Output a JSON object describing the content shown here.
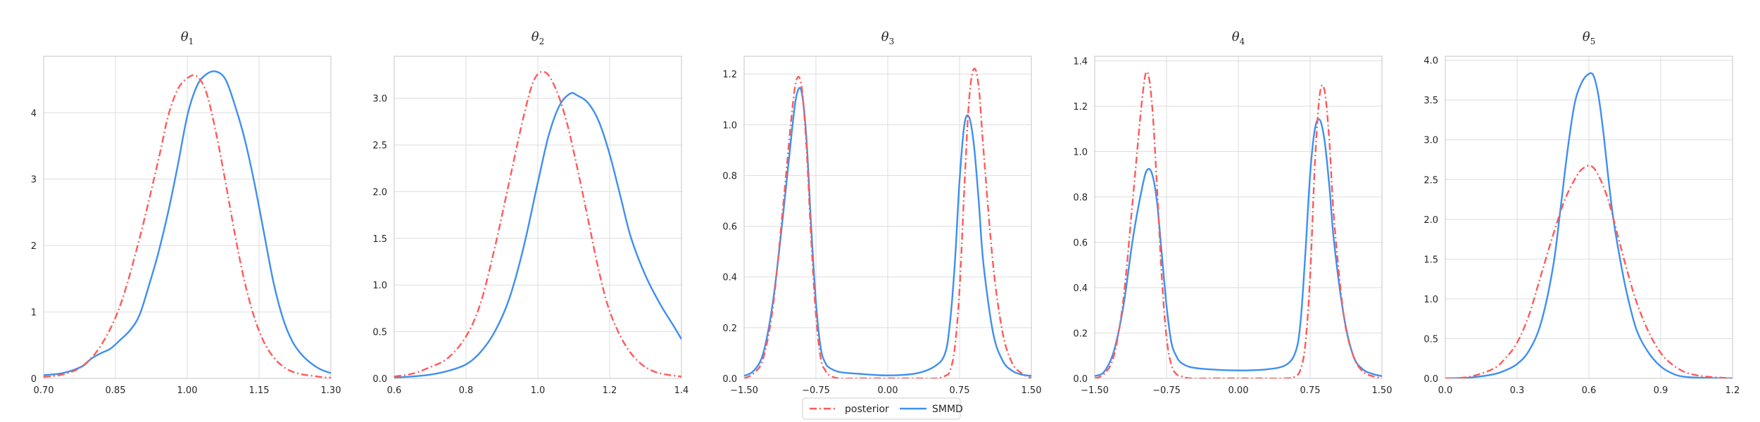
{
  "figure": {
    "colors": {
      "posterior": "#ff5a5a",
      "smmd": "#3f8fef",
      "grid": "#dedede",
      "frame": "#cfcfcf"
    },
    "legend": {
      "placement": "bottom-center",
      "entries": [
        "posterior",
        "SMMD"
      ]
    }
  },
  "chart_data": [
    {
      "type": "line",
      "title": "θ1",
      "title_parts": {
        "base": "θ",
        "sub": "1"
      },
      "xlim": [
        0.7,
        1.3
      ],
      "ylim": [
        0,
        4.85
      ],
      "xticks": [
        0.7,
        0.85,
        1.0,
        1.15,
        1.3
      ],
      "xtick_labels": [
        "0.70",
        "0.85",
        "1.00",
        "1.15",
        "1.30"
      ],
      "yticks": [
        0,
        1,
        2,
        3,
        4
      ],
      "ytick_labels": [
        "0",
        "1",
        "2",
        "3",
        "4"
      ],
      "grid": true,
      "series": [
        {
          "name": "posterior",
          "style": "dashdot",
          "x": [
            0.7,
            0.74,
            0.78,
            0.82,
            0.86,
            0.9,
            0.94,
            0.96,
            0.98,
            1.0,
            1.02,
            1.04,
            1.06,
            1.08,
            1.1,
            1.12,
            1.14,
            1.16,
            1.18,
            1.2,
            1.22,
            1.24,
            1.26,
            1.28,
            1.3
          ],
          "y": [
            0.02,
            0.06,
            0.18,
            0.5,
            1.1,
            2.1,
            3.3,
            3.95,
            4.35,
            4.52,
            4.55,
            4.3,
            3.7,
            2.95,
            2.15,
            1.45,
            0.92,
            0.55,
            0.32,
            0.18,
            0.1,
            0.06,
            0.04,
            0.02,
            0.01
          ]
        },
        {
          "name": "SMMD",
          "style": "solid",
          "x": [
            0.7,
            0.74,
            0.78,
            0.8,
            0.82,
            0.84,
            0.86,
            0.88,
            0.9,
            0.92,
            0.94,
            0.96,
            0.98,
            1.0,
            1.02,
            1.04,
            1.06,
            1.08,
            1.1,
            1.12,
            1.14,
            1.16,
            1.18,
            1.2,
            1.22,
            1.24,
            1.26,
            1.28,
            1.3
          ],
          "y": [
            0.05,
            0.08,
            0.18,
            0.3,
            0.38,
            0.45,
            0.58,
            0.72,
            0.95,
            1.4,
            1.9,
            2.5,
            3.2,
            3.95,
            4.4,
            4.58,
            4.62,
            4.5,
            4.1,
            3.6,
            2.95,
            2.2,
            1.45,
            0.9,
            0.55,
            0.35,
            0.22,
            0.13,
            0.08
          ]
        }
      ]
    },
    {
      "type": "line",
      "title": "θ2",
      "title_parts": {
        "base": "θ",
        "sub": "2"
      },
      "xlim": [
        0.6,
        1.4
      ],
      "ylim": [
        0,
        3.45
      ],
      "xticks": [
        0.6,
        0.8,
        1.0,
        1.2,
        1.4
      ],
      "xtick_labels": [
        "0.6",
        "0.8",
        "1.0",
        "1.2",
        "1.4"
      ],
      "yticks": [
        0,
        0.5,
        1.0,
        1.5,
        2.0,
        2.5,
        3.0
      ],
      "ytick_labels": [
        "0.0",
        "0.5",
        "1.0",
        "1.5",
        "2.0",
        "2.5",
        "3.0"
      ],
      "grid": true,
      "series": [
        {
          "name": "posterior",
          "style": "dashdot",
          "x": [
            0.6,
            0.65,
            0.7,
            0.75,
            0.8,
            0.84,
            0.88,
            0.92,
            0.96,
            0.99,
            1.02,
            1.05,
            1.08,
            1.11,
            1.14,
            1.17,
            1.2,
            1.24,
            1.28,
            1.32,
            1.36,
            1.4
          ],
          "y": [
            0.02,
            0.05,
            0.12,
            0.22,
            0.45,
            0.8,
            1.4,
            2.1,
            2.8,
            3.2,
            3.28,
            3.1,
            2.75,
            2.25,
            1.7,
            1.15,
            0.72,
            0.38,
            0.18,
            0.08,
            0.04,
            0.02
          ]
        },
        {
          "name": "SMMD",
          "style": "solid",
          "x": [
            0.6,
            0.65,
            0.7,
            0.75,
            0.8,
            0.84,
            0.88,
            0.92,
            0.96,
            1.0,
            1.03,
            1.06,
            1.09,
            1.11,
            1.14,
            1.17,
            1.2,
            1.23,
            1.26,
            1.3,
            1.34,
            1.38,
            1.4
          ],
          "y": [
            0.01,
            0.02,
            0.04,
            0.08,
            0.15,
            0.28,
            0.5,
            0.85,
            1.4,
            2.1,
            2.6,
            2.92,
            3.05,
            3.03,
            2.95,
            2.75,
            2.4,
            1.95,
            1.5,
            1.1,
            0.8,
            0.55,
            0.42
          ]
        }
      ]
    },
    {
      "type": "line",
      "title": "θ3",
      "title_parts": {
        "base": "θ",
        "sub": "3"
      },
      "xlim": [
        -1.5,
        1.5
      ],
      "ylim": [
        0,
        1.27
      ],
      "xticks": [
        -1.5,
        -0.75,
        0.0,
        0.75,
        1.5
      ],
      "xtick_labels": [
        "−1.50",
        "−0.75",
        "0.00",
        "0.75",
        "1.50"
      ],
      "yticks": [
        0,
        0.2,
        0.4,
        0.6,
        0.8,
        1.0,
        1.2
      ],
      "ytick_labels": [
        "0.0",
        "0.2",
        "0.4",
        "0.6",
        "0.8",
        "1.0",
        "1.2"
      ],
      "grid": true,
      "series": [
        {
          "name": "posterior",
          "style": "dashdot",
          "x": [
            -1.5,
            -1.4,
            -1.3,
            -1.2,
            -1.1,
            -1.0,
            -0.95,
            -0.9,
            -0.85,
            -0.8,
            -0.75,
            -0.7,
            -0.65,
            -0.6,
            -0.5,
            -0.3,
            0.0,
            0.3,
            0.5,
            0.6,
            0.65,
            0.7,
            0.75,
            0.8,
            0.85,
            0.9,
            0.95,
            1.0,
            1.1,
            1.2,
            1.3,
            1.4,
            1.5
          ],
          "y": [
            0.0,
            0.02,
            0.08,
            0.28,
            0.65,
            1.05,
            1.18,
            1.15,
            0.92,
            0.55,
            0.25,
            0.08,
            0.03,
            0.01,
            0.0,
            0.0,
            0.0,
            0.0,
            0.0,
            0.01,
            0.03,
            0.12,
            0.35,
            0.75,
            1.1,
            1.22,
            1.15,
            0.9,
            0.45,
            0.18,
            0.06,
            0.02,
            0.0
          ]
        },
        {
          "name": "SMMD",
          "style": "solid",
          "x": [
            -1.5,
            -1.4,
            -1.3,
            -1.2,
            -1.1,
            -1.0,
            -0.95,
            -0.9,
            -0.85,
            -0.8,
            -0.75,
            -0.7,
            -0.65,
            -0.6,
            -0.5,
            -0.3,
            0.0,
            0.3,
            0.5,
            0.6,
            0.65,
            0.7,
            0.75,
            0.8,
            0.85,
            0.9,
            0.95,
            1.0,
            1.1,
            1.2,
            1.3,
            1.4,
            1.5
          ],
          "y": [
            0.01,
            0.03,
            0.1,
            0.3,
            0.62,
            0.98,
            1.12,
            1.13,
            0.95,
            0.6,
            0.3,
            0.12,
            0.06,
            0.04,
            0.025,
            0.018,
            0.012,
            0.02,
            0.05,
            0.1,
            0.22,
            0.45,
            0.78,
            1.0,
            1.03,
            0.92,
            0.7,
            0.45,
            0.18,
            0.07,
            0.03,
            0.015,
            0.01
          ]
        }
      ]
    },
    {
      "type": "line",
      "title": "θ4",
      "title_parts": {
        "base": "θ",
        "sub": "4"
      },
      "xlim": [
        -1.5,
        1.5
      ],
      "ylim": [
        0,
        1.42
      ],
      "xticks": [
        -1.5,
        -0.75,
        0.0,
        0.75,
        1.5
      ],
      "xtick_labels": [
        "−1.50",
        "−0.75",
        "0.00",
        "0.75",
        "1.50"
      ],
      "yticks": [
        0,
        0.2,
        0.4,
        0.6,
        0.8,
        1.0,
        1.2,
        1.4
      ],
      "ytick_labels": [
        "0.0",
        "0.2",
        "0.4",
        "0.6",
        "0.8",
        "1.0",
        "1.2",
        "1.4"
      ],
      "grid": true,
      "series": [
        {
          "name": "posterior",
          "style": "dashdot",
          "x": [
            -1.5,
            -1.4,
            -1.3,
            -1.2,
            -1.1,
            -1.0,
            -0.95,
            -0.9,
            -0.85,
            -0.8,
            -0.75,
            -0.7,
            -0.65,
            -0.6,
            -0.5,
            -0.3,
            0.0,
            0.3,
            0.5,
            0.6,
            0.65,
            0.7,
            0.75,
            0.8,
            0.85,
            0.9,
            0.95,
            1.0,
            1.1,
            1.2,
            1.3,
            1.4,
            1.5
          ],
          "y": [
            0.0,
            0.02,
            0.1,
            0.35,
            0.8,
            1.25,
            1.35,
            1.2,
            0.85,
            0.45,
            0.18,
            0.06,
            0.02,
            0.01,
            0.0,
            0.0,
            0.0,
            0.0,
            0.0,
            0.01,
            0.04,
            0.15,
            0.45,
            0.95,
            1.25,
            1.27,
            1.05,
            0.7,
            0.28,
            0.1,
            0.03,
            0.01,
            0.0
          ]
        },
        {
          "name": "SMMD",
          "style": "solid",
          "x": [
            -1.5,
            -1.4,
            -1.3,
            -1.2,
            -1.1,
            -1.0,
            -0.95,
            -0.9,
            -0.85,
            -0.8,
            -0.75,
            -0.7,
            -0.65,
            -0.6,
            -0.5,
            -0.3,
            0.0,
            0.3,
            0.5,
            0.6,
            0.65,
            0.7,
            0.75,
            0.8,
            0.85,
            0.9,
            0.95,
            1.0,
            1.1,
            1.2,
            1.3,
            1.4,
            1.5
          ],
          "y": [
            0.01,
            0.03,
            0.12,
            0.32,
            0.62,
            0.85,
            0.92,
            0.9,
            0.78,
            0.55,
            0.32,
            0.16,
            0.1,
            0.07,
            0.05,
            0.04,
            0.035,
            0.04,
            0.06,
            0.12,
            0.25,
            0.55,
            0.9,
            1.1,
            1.14,
            1.05,
            0.85,
            0.6,
            0.28,
            0.1,
            0.04,
            0.02,
            0.01
          ]
        }
      ]
    },
    {
      "type": "line",
      "title": "θ5",
      "title_parts": {
        "base": "θ",
        "sub": "5"
      },
      "xlim": [
        0.0,
        1.2
      ],
      "ylim": [
        0,
        4.05
      ],
      "xticks": [
        0.0,
        0.3,
        0.6,
        0.9,
        1.2
      ],
      "xtick_labels": [
        "0.0",
        "0.3",
        "0.6",
        "0.9",
        "1.2"
      ],
      "yticks": [
        0,
        0.5,
        1.0,
        1.5,
        2.0,
        2.5,
        3.0,
        3.5,
        4.0
      ],
      "ytick_labels": [
        "0.0",
        "0.5",
        "1.0",
        "1.5",
        "2.0",
        "2.5",
        "3.0",
        "3.5",
        "4.0"
      ],
      "grid": true,
      "series": [
        {
          "name": "posterior",
          "style": "dashdot",
          "x": [
            0.0,
            0.1,
            0.2,
            0.25,
            0.3,
            0.35,
            0.4,
            0.45,
            0.5,
            0.55,
            0.58,
            0.61,
            0.64,
            0.68,
            0.72,
            0.76,
            0.8,
            0.85,
            0.9,
            0.95,
            1.0,
            1.05,
            1.1,
            1.2
          ],
          "y": [
            0.0,
            0.02,
            0.12,
            0.25,
            0.45,
            0.8,
            1.3,
            1.8,
            2.25,
            2.55,
            2.65,
            2.67,
            2.55,
            2.25,
            1.8,
            1.35,
            0.95,
            0.58,
            0.32,
            0.17,
            0.08,
            0.04,
            0.02,
            0.0
          ]
        },
        {
          "name": "SMMD",
          "style": "solid",
          "x": [
            0.0,
            0.1,
            0.2,
            0.25,
            0.3,
            0.35,
            0.4,
            0.45,
            0.48,
            0.51,
            0.54,
            0.57,
            0.6,
            0.62,
            0.64,
            0.66,
            0.68,
            0.7,
            0.73,
            0.76,
            0.8,
            0.85,
            0.9,
            0.95,
            1.0,
            1.1,
            1.2
          ],
          "y": [
            0.0,
            0.01,
            0.05,
            0.1,
            0.18,
            0.35,
            0.7,
            1.4,
            2.1,
            2.85,
            3.45,
            3.72,
            3.83,
            3.8,
            3.55,
            3.1,
            2.55,
            2.05,
            1.5,
            1.05,
            0.6,
            0.32,
            0.15,
            0.06,
            0.02,
            0.005,
            0.0
          ]
        }
      ]
    }
  ]
}
